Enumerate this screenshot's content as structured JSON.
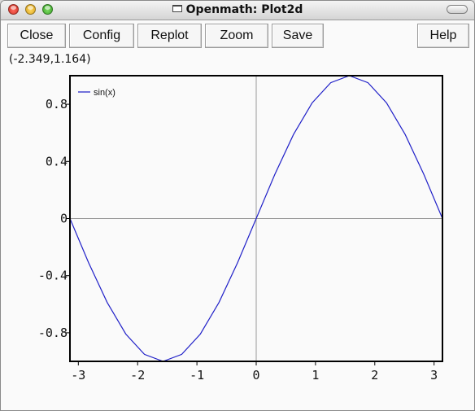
{
  "window": {
    "title": "Openmath: Plot2d"
  },
  "toolbar": {
    "close_label": "Close",
    "config_label": "Config",
    "replot_label": "Replot",
    "zoom_label": "Zoom",
    "save_label": "Save",
    "help_label": "Help"
  },
  "coordinates_readout": "(-2.349,1.164)",
  "colors": {
    "series": "#2020c8",
    "axis": "#999999",
    "frame": "#000000"
  },
  "chart_data": {
    "type": "line",
    "title": "",
    "xlabel": "",
    "ylabel": "",
    "xlim": [
      -3.14159,
      3.14159
    ],
    "ylim": [
      -1,
      1
    ],
    "x_ticks": [
      "-3",
      "-2",
      "-1",
      "0",
      "1",
      "2",
      "3"
    ],
    "y_ticks": [
      "0.8",
      "0.4",
      "0",
      "-0.4",
      "-0.8"
    ],
    "x_tick_values": [
      -3,
      -2,
      -1,
      0,
      1,
      2,
      3
    ],
    "y_tick_values": [
      0.8,
      0.4,
      0,
      -0.4,
      -0.8
    ],
    "legend_position": "top-left",
    "grid": false,
    "series": [
      {
        "name": "sin(x)",
        "x": [
          -3.1416,
          -2.8274,
          -2.5133,
          -2.1991,
          -1.885,
          -1.5708,
          -1.2566,
          -0.9425,
          -0.6283,
          -0.3142,
          0,
          0.3142,
          0.6283,
          0.9425,
          1.2566,
          1.5708,
          1.885,
          2.1991,
          2.5133,
          2.8274,
          3.1416
        ],
        "y": [
          0,
          -0.309,
          -0.5878,
          -0.809,
          -0.9511,
          -1,
          -0.9511,
          -0.809,
          -0.5878,
          -0.309,
          0,
          0.309,
          0.5878,
          0.809,
          0.9511,
          1,
          0.9511,
          0.809,
          0.5878,
          0.309,
          0
        ]
      }
    ]
  }
}
